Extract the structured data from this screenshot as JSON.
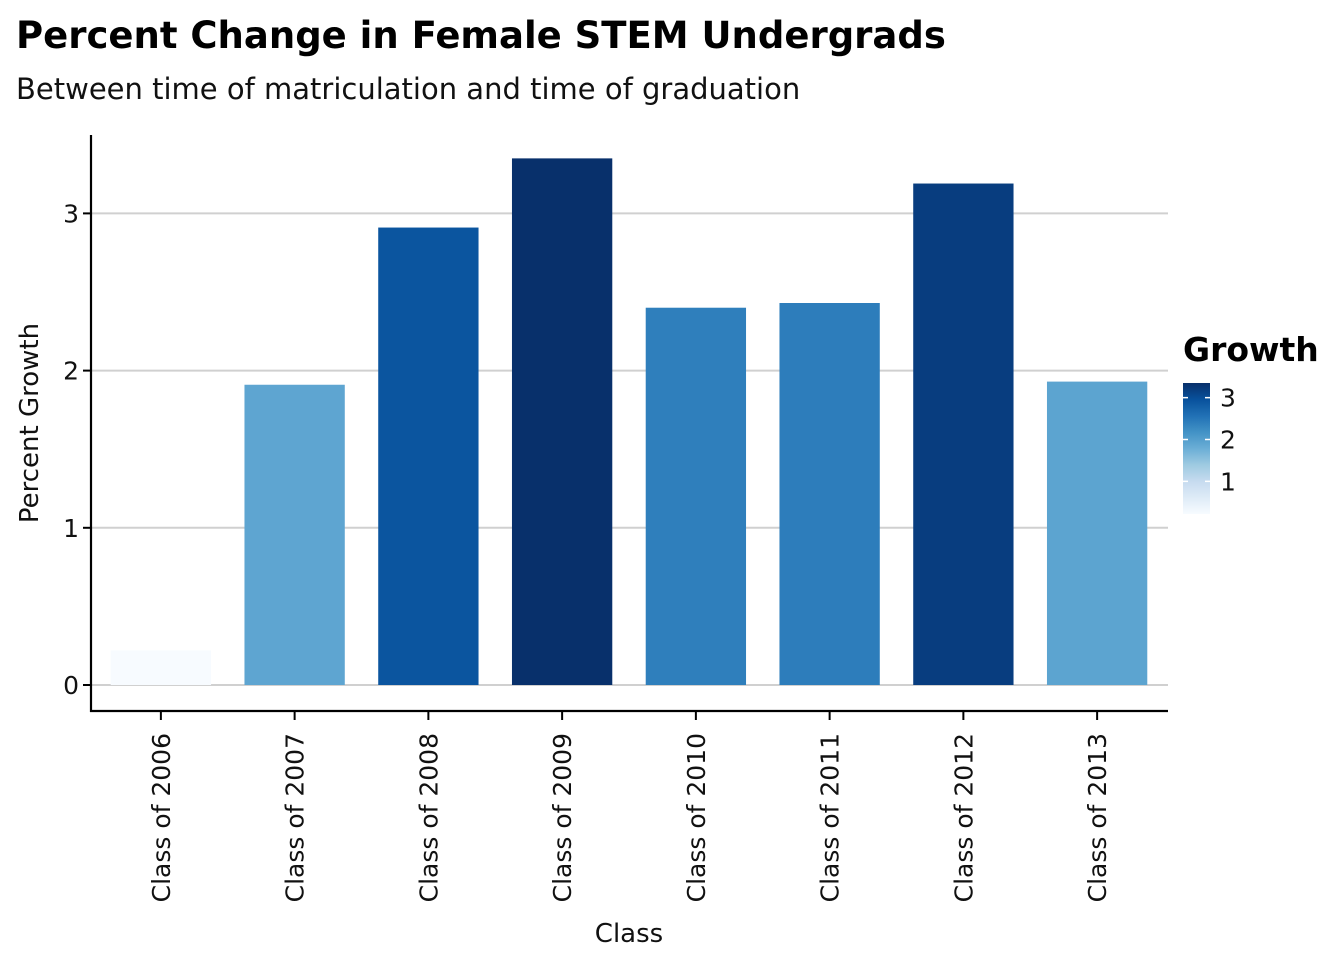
{
  "chart_data": {
    "type": "bar",
    "title": "Percent Change in Female STEM Undergrads",
    "subtitle": "Between time of matriculation and time of graduation",
    "xlabel": "Class",
    "ylabel": "Percent Growth",
    "categories": [
      "Class of 2006",
      "Class of 2007",
      "Class of 2008",
      "Class of 2009",
      "Class of 2010",
      "Class of 2011",
      "Class of 2012",
      "Class of 2013"
    ],
    "values": [
      0.22,
      1.91,
      2.91,
      3.35,
      2.4,
      2.43,
      3.19,
      1.93
    ],
    "ylim": [
      -0.16,
      3.5
    ],
    "yticks": [
      0,
      1,
      2,
      3
    ],
    "grid": "horizontal",
    "legend": {
      "title": "Growth",
      "position": "right",
      "ticks": [
        1,
        2,
        3
      ],
      "range": [
        0.22,
        3.35
      ],
      "colors": [
        "#f7fbff",
        "#deebf7",
        "#c6dbef",
        "#9ecae1",
        "#6baed6",
        "#4292c6",
        "#2171b5",
        "#08519c",
        "#08306b"
      ]
    }
  }
}
